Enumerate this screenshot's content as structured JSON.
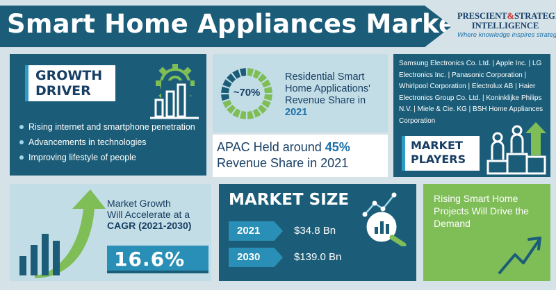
{
  "header": {
    "title": "Smart Home Appliances Market"
  },
  "logo": {
    "line1_a": "PRESCIENT",
    "line1_amp": "&",
    "line1_b": "STRATEGIC",
    "line2": "INTELLIGENCE",
    "tagline": "Where knowledge inspires strategy"
  },
  "growth_driver": {
    "heading_line1": "GROWTH",
    "heading_line2": "DRIVER",
    "items": [
      "Rising internet and smartphone penetration",
      "Advancements in technologies",
      "Improving lifestyle of people"
    ]
  },
  "residential": {
    "percent_label": "~70%",
    "share_fraction": 0.7,
    "text": "Residential Smart Home Applications' Revenue Share in",
    "year": "2021"
  },
  "apac": {
    "text_before": "APAC Held around",
    "percent": "45%",
    "text_after": "Revenue Share in 2021"
  },
  "market_players": {
    "companies": "Samsung Electronics Co. Ltd. | Apple Inc. | LG Electronics Inc. | Panasonic Corporation | Whirlpool Corporation | Electrolux AB | Haier Electronics Group Co. Ltd. | Koninklijke Philips N.V. | Miele & Cie. KG | BSH Home Appliances Corporation",
    "heading_line1": "MARKET",
    "heading_line2": "PLAYERS"
  },
  "cagr": {
    "line1": "Market Growth",
    "line2": "Will Accelerate at a",
    "line3": "CAGR (2021-2030)",
    "value": "16.6%"
  },
  "market_size": {
    "heading": "MARKET SIZE",
    "rows": [
      {
        "year": "2021",
        "value": "$34.8 Bn"
      },
      {
        "year": "2030",
        "value": "$139.0 Bn"
      }
    ]
  },
  "rising": {
    "text": "Rising Smart Home Projects Will Drive the Demand"
  },
  "colors": {
    "navy": "#1b5d78",
    "light_blue": "#c2dde6",
    "accent_blue": "#2a8fb6",
    "green": "#7fbd57",
    "dark_text": "#173e63"
  }
}
